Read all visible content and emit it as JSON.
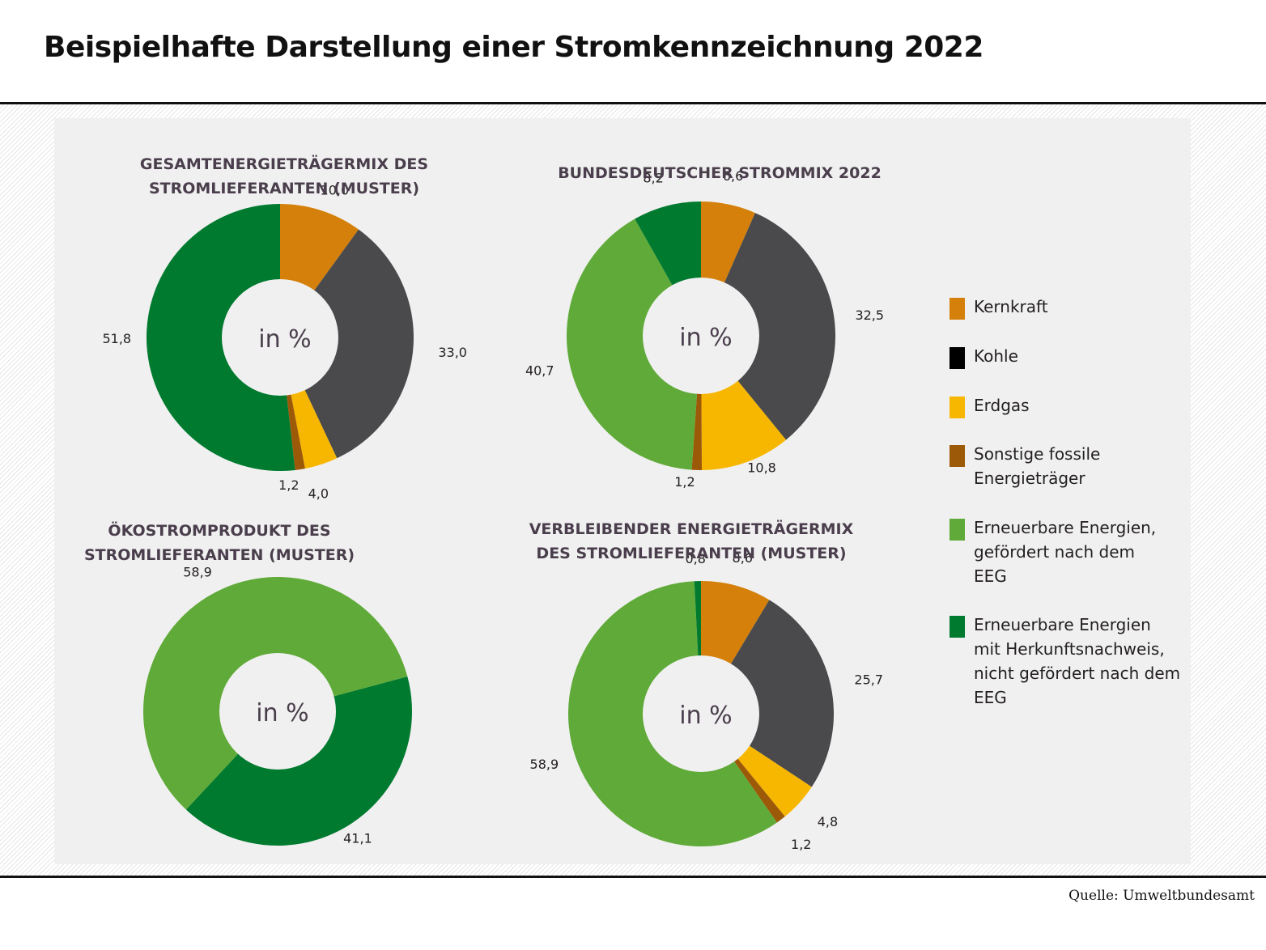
{
  "title": "Beispielhafte Darstellung einer Stromkennzeichnung 2022",
  "source": "Quelle: Umweltbundesamt",
  "center_label": "in %",
  "colors": {
    "Kernkraft": "#d4800a",
    "Kohle": "#000000",
    "Erdgas": "#f7b600",
    "Sonstige fossile Energieträger": "#9c5a08",
    "Erneuerbare Energien, gefördert nach dem EEG": "#5faa38",
    "Erneuerbare Energien mit Herkunftsnachweis, nicht gefördert nach dem EEG": "#007a2f",
    "coal_slice": "#4a4a4c"
  },
  "legend": [
    {
      "label": "Kernkraft",
      "color": "#d4800a"
    },
    {
      "label": "Kohle",
      "color": "#000000"
    },
    {
      "label": "Erdgas",
      "color": "#f7b600"
    },
    {
      "label": "Sonstige fossile\nEnergieträger",
      "color": "#9c5a08"
    },
    {
      "label": "Erneuerbare Energien,\ngefördert nach dem\nEEG",
      "color": "#5faa38"
    },
    {
      "label": "Erneuerbare Energien\nmit Herkunftsnachweis,\nnicht gefördert nach dem\nEEG",
      "color": "#007a2f"
    }
  ],
  "chart_data": [
    {
      "type": "pie",
      "title": "GESAMTENERGIETRÄGERMIX DES\nSTROMLIEFERANTEN (MUSTER)",
      "categories": [
        "Kernkraft",
        "Kohle",
        "Erdgas",
        "Sonstige fossile Energieträger",
        "Erneuerbare Energien mit Herkunftsnachweis"
      ],
      "values": [
        10.0,
        33.0,
        4.0,
        1.2,
        51.8
      ],
      "labels": [
        "10,0",
        "33,0",
        "4,0",
        "1,2",
        "51,8"
      ],
      "colors": [
        "#d4800a",
        "#4a4a4c",
        "#f7b600",
        "#9c5a08",
        "#007a2f"
      ],
      "center": "in %"
    },
    {
      "type": "pie",
      "title": "BUNDESDEUTSCHER STROMMIX 2022",
      "categories": [
        "Kernkraft",
        "Kohle",
        "Erdgas",
        "Sonstige fossile Energieträger",
        "Erneuerbare Energien, gefördert nach dem EEG",
        "Erneuerbare Energien mit Herkunftsnachweis"
      ],
      "values": [
        6.6,
        32.5,
        10.8,
        1.2,
        40.7,
        8.2
      ],
      "labels": [
        "6,6",
        "32,5",
        "10,8",
        "1,2",
        "40,7",
        "8,2"
      ],
      "colors": [
        "#d4800a",
        "#4a4a4c",
        "#f7b600",
        "#9c5a08",
        "#5faa38",
        "#007a2f"
      ],
      "center": "in %"
    },
    {
      "type": "pie",
      "title": "ÖKOSTROMPRODUKT DES\nSTROMLIEFERANTEN (MUSTER)",
      "categories": [
        "Erneuerbare Energien mit Herkunftsnachweis",
        "Erneuerbare Energien, gefördert nach dem EEG"
      ],
      "values": [
        41.1,
        58.9
      ],
      "labels": [
        "41,1",
        "58,9"
      ],
      "colors": [
        "#007a2f",
        "#5faa38"
      ],
      "start_angle_deg": 75,
      "center": "in %"
    },
    {
      "type": "pie",
      "title": "VERBLEIBENDER ENERGIETRÄGERMIX\nDES STROMLIEFERANTEN (MUSTER)",
      "categories": [
        "Kernkraft",
        "Kohle",
        "Erdgas",
        "Sonstige fossile Energieträger",
        "Erneuerbare Energien, gefördert nach dem EEG",
        "Erneuerbare Energien mit Herkunftsnachweis"
      ],
      "values": [
        8.6,
        25.7,
        4.8,
        1.2,
        58.9,
        0.8
      ],
      "labels": [
        "8,6",
        "25,7",
        "4,8",
        "1,2",
        "58,9",
        "0,8"
      ],
      "colors": [
        "#d4800a",
        "#4a4a4c",
        "#f7b600",
        "#9c5a08",
        "#5faa38",
        "#007a2f"
      ],
      "center": "in %"
    }
  ]
}
